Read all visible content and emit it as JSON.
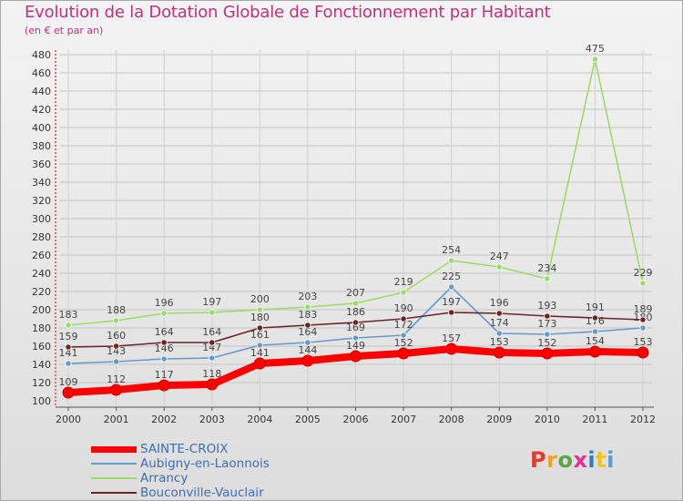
{
  "title": "Evolution de la Dotation Globale de Fonctionnement par Habitant",
  "subtitle": "(en € et par an)",
  "logo": {
    "text": "Proxiti",
    "colors": [
      "#e53a2f",
      "#f4a21c",
      "#57a83f",
      "#e8308e",
      "#2c7fc4",
      "#f0c419",
      "#5a9bd5"
    ]
  },
  "chart_data": {
    "type": "line",
    "title": "Evolution de la Dotation Globale de Fonctionnement par Habitant",
    "subtitle": "(en € et par an)",
    "xlabel": "",
    "ylabel": "",
    "ylim": [
      100,
      480
    ],
    "yticks": [
      100,
      120,
      140,
      160,
      180,
      200,
      220,
      240,
      260,
      280,
      300,
      320,
      340,
      360,
      380,
      400,
      420,
      440,
      460,
      480
    ],
    "categories": [
      "2000",
      "2001",
      "2002",
      "2003",
      "2004",
      "2005",
      "2006",
      "2007",
      "2008",
      "2009",
      "2010",
      "2011",
      "2012"
    ],
    "series": [
      {
        "name": "SAINTE-CROIX",
        "color": "#ff0000",
        "values": [
          109,
          112,
          117,
          118,
          141,
          144,
          149,
          152,
          157,
          153,
          152,
          154,
          153
        ]
      },
      {
        "name": "Aubigny-en-Laonnois",
        "color": "#6699cc",
        "values": [
          141,
          143,
          146,
          147,
          161,
          164,
          169,
          172,
          225,
          174,
          173,
          176,
          180
        ]
      },
      {
        "name": "Arrancy",
        "color": "#99dd66",
        "values": [
          183,
          188,
          196,
          197,
          200,
          203,
          207,
          219,
          254,
          247,
          234,
          475,
          229
        ]
      },
      {
        "name": "Bouconville-Vauclair",
        "color": "#6b2424",
        "values": [
          159,
          160,
          164,
          164,
          180,
          183,
          186,
          190,
          197,
          196,
          193,
          191,
          189
        ]
      }
    ]
  }
}
